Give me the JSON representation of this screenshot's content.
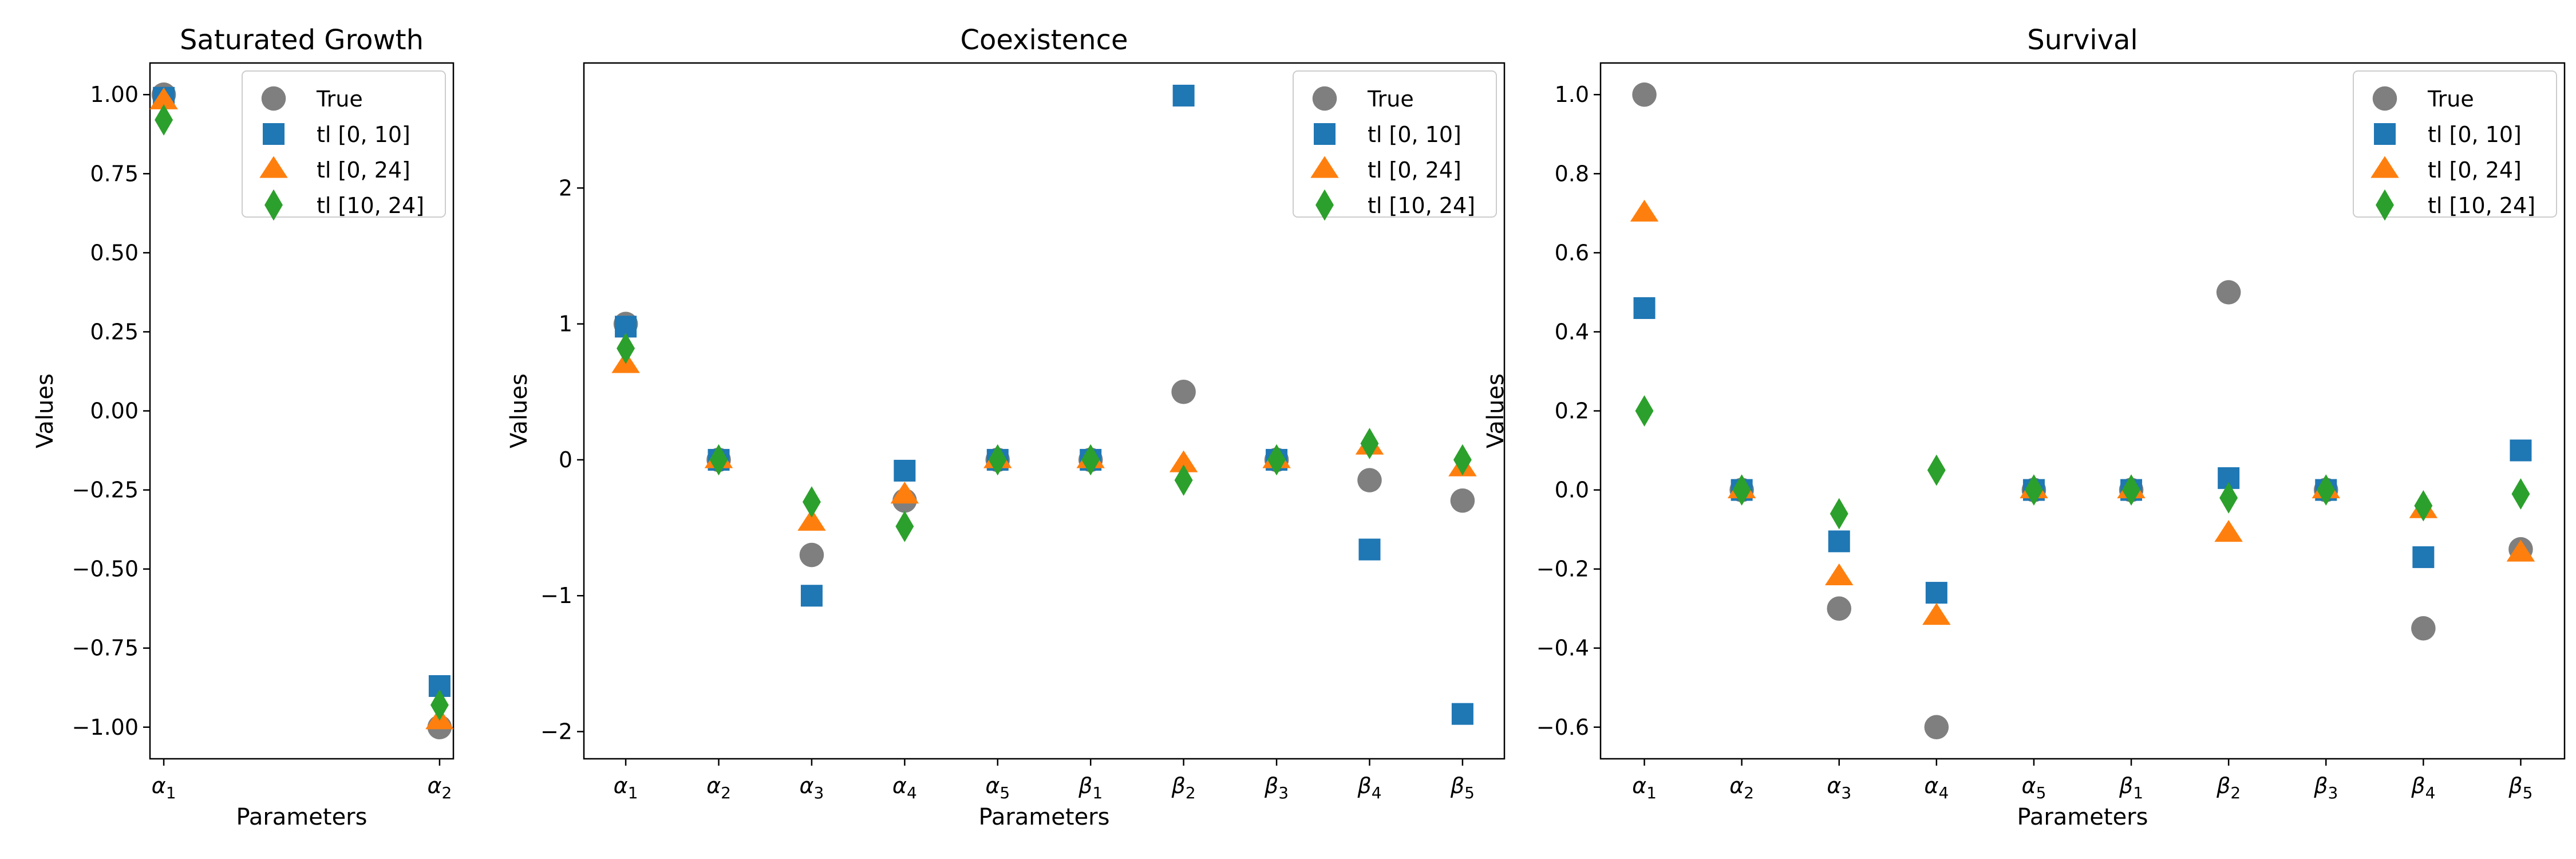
{
  "figure": {
    "background": "#ffffff"
  },
  "series_styles": [
    {
      "name": "True",
      "marker": "circle",
      "color": "#7f7f7f"
    },
    {
      "name": "tl [0, 10]",
      "marker": "square",
      "color": "#1f77b4"
    },
    {
      "name": "tl [0, 24]",
      "marker": "triangle",
      "color": "#ff7f0e"
    },
    {
      "name": "tl [10, 24]",
      "marker": "diamond",
      "color": "#2ca02c"
    }
  ],
  "chart_data": [
    {
      "type": "scatter",
      "title": "Saturated Growth",
      "xlabel": "Parameters",
      "ylabel": "Values",
      "categories": [
        {
          "base": "α",
          "sub": "1"
        },
        {
          "base": "α",
          "sub": "2"
        }
      ],
      "ylim": [
        -1.1,
        1.1
      ],
      "yticks": [
        -1.0,
        -0.75,
        -0.5,
        -0.25,
        0.0,
        0.25,
        0.5,
        0.75,
        1.0
      ],
      "ytick_labels": [
        "−1.00",
        "−0.75",
        "−0.50",
        "−0.25",
        "0.00",
        "0.25",
        "0.50",
        "0.75",
        "1.00"
      ],
      "legend": "top-right",
      "grid": false,
      "series": [
        {
          "name": "True",
          "values": [
            1.0,
            -1.0
          ]
        },
        {
          "name": "tl [0, 10]",
          "values": [
            0.99,
            -0.87
          ]
        },
        {
          "name": "tl [0, 24]",
          "values": [
            0.98,
            -0.98
          ]
        },
        {
          "name": "tl [10, 24]",
          "values": [
            0.92,
            -0.93
          ]
        }
      ]
    },
    {
      "type": "scatter",
      "title": "Coexistence",
      "xlabel": "Parameters",
      "ylabel": "Values",
      "categories": [
        {
          "base": "α",
          "sub": "1"
        },
        {
          "base": "α",
          "sub": "2"
        },
        {
          "base": "α",
          "sub": "3"
        },
        {
          "base": "α",
          "sub": "4"
        },
        {
          "base": "α",
          "sub": "5"
        },
        {
          "base": "β",
          "sub": "1"
        },
        {
          "base": "β",
          "sub": "2"
        },
        {
          "base": "β",
          "sub": "3"
        },
        {
          "base": "β",
          "sub": "4"
        },
        {
          "base": "β",
          "sub": "5"
        }
      ],
      "ylim": [
        -2.2,
        2.92
      ],
      "yticks": [
        -2,
        -1,
        0,
        1,
        2
      ],
      "ytick_labels": [
        "−2",
        "−1",
        "0",
        "1",
        "2"
      ],
      "legend": "top-right",
      "grid": false,
      "series": [
        {
          "name": "True",
          "values": [
            1.0,
            0.0,
            -0.7,
            -0.3,
            0.0,
            0.0,
            0.5,
            0.0,
            -0.15,
            -0.3
          ]
        },
        {
          "name": "tl [0, 10]",
          "values": [
            0.98,
            0.0,
            -1.0,
            -0.08,
            0.0,
            0.0,
            2.68,
            0.0,
            -0.66,
            -1.87
          ]
        },
        {
          "name": "tl [0, 24]",
          "values": [
            0.7,
            0.0,
            -0.46,
            -0.26,
            0.0,
            0.0,
            -0.03,
            0.0,
            0.1,
            -0.06
          ]
        },
        {
          "name": "tl [10, 24]",
          "values": [
            0.82,
            0.0,
            -0.31,
            -0.49,
            0.0,
            0.0,
            -0.15,
            0.0,
            0.12,
            0.0
          ]
        }
      ]
    },
    {
      "type": "scatter",
      "title": "Survival",
      "xlabel": "Parameters",
      "ylabel": "Values",
      "categories": [
        {
          "base": "α",
          "sub": "1"
        },
        {
          "base": "α",
          "sub": "2"
        },
        {
          "base": "α",
          "sub": "3"
        },
        {
          "base": "α",
          "sub": "4"
        },
        {
          "base": "α",
          "sub": "5"
        },
        {
          "base": "β",
          "sub": "1"
        },
        {
          "base": "β",
          "sub": "2"
        },
        {
          "base": "β",
          "sub": "3"
        },
        {
          "base": "β",
          "sub": "4"
        },
        {
          "base": "β",
          "sub": "5"
        }
      ],
      "ylim": [
        -0.68,
        1.08
      ],
      "yticks": [
        -0.6,
        -0.4,
        -0.2,
        0.0,
        0.2,
        0.4,
        0.6,
        0.8,
        1.0
      ],
      "ytick_labels": [
        "−0.6",
        "−0.4",
        "−0.2",
        "0.0",
        "0.2",
        "0.4",
        "0.6",
        "0.8",
        "1.0"
      ],
      "legend": "top-right",
      "grid": false,
      "series": [
        {
          "name": "True",
          "values": [
            1.0,
            0.0,
            -0.3,
            -0.6,
            0.0,
            0.0,
            0.5,
            0.0,
            -0.35,
            -0.15
          ]
        },
        {
          "name": "tl [0, 10]",
          "values": [
            0.46,
            0.0,
            -0.13,
            -0.26,
            0.0,
            0.0,
            0.03,
            0.0,
            -0.17,
            0.1
          ]
        },
        {
          "name": "tl [0, 24]",
          "values": [
            0.7,
            0.0,
            -0.22,
            -0.32,
            0.0,
            0.0,
            -0.11,
            0.0,
            -0.05,
            -0.16
          ]
        },
        {
          "name": "tl [10, 24]",
          "values": [
            0.2,
            0.0,
            -0.06,
            0.05,
            0.0,
            0.0,
            -0.02,
            0.0,
            -0.04,
            -0.01
          ]
        }
      ]
    }
  ]
}
